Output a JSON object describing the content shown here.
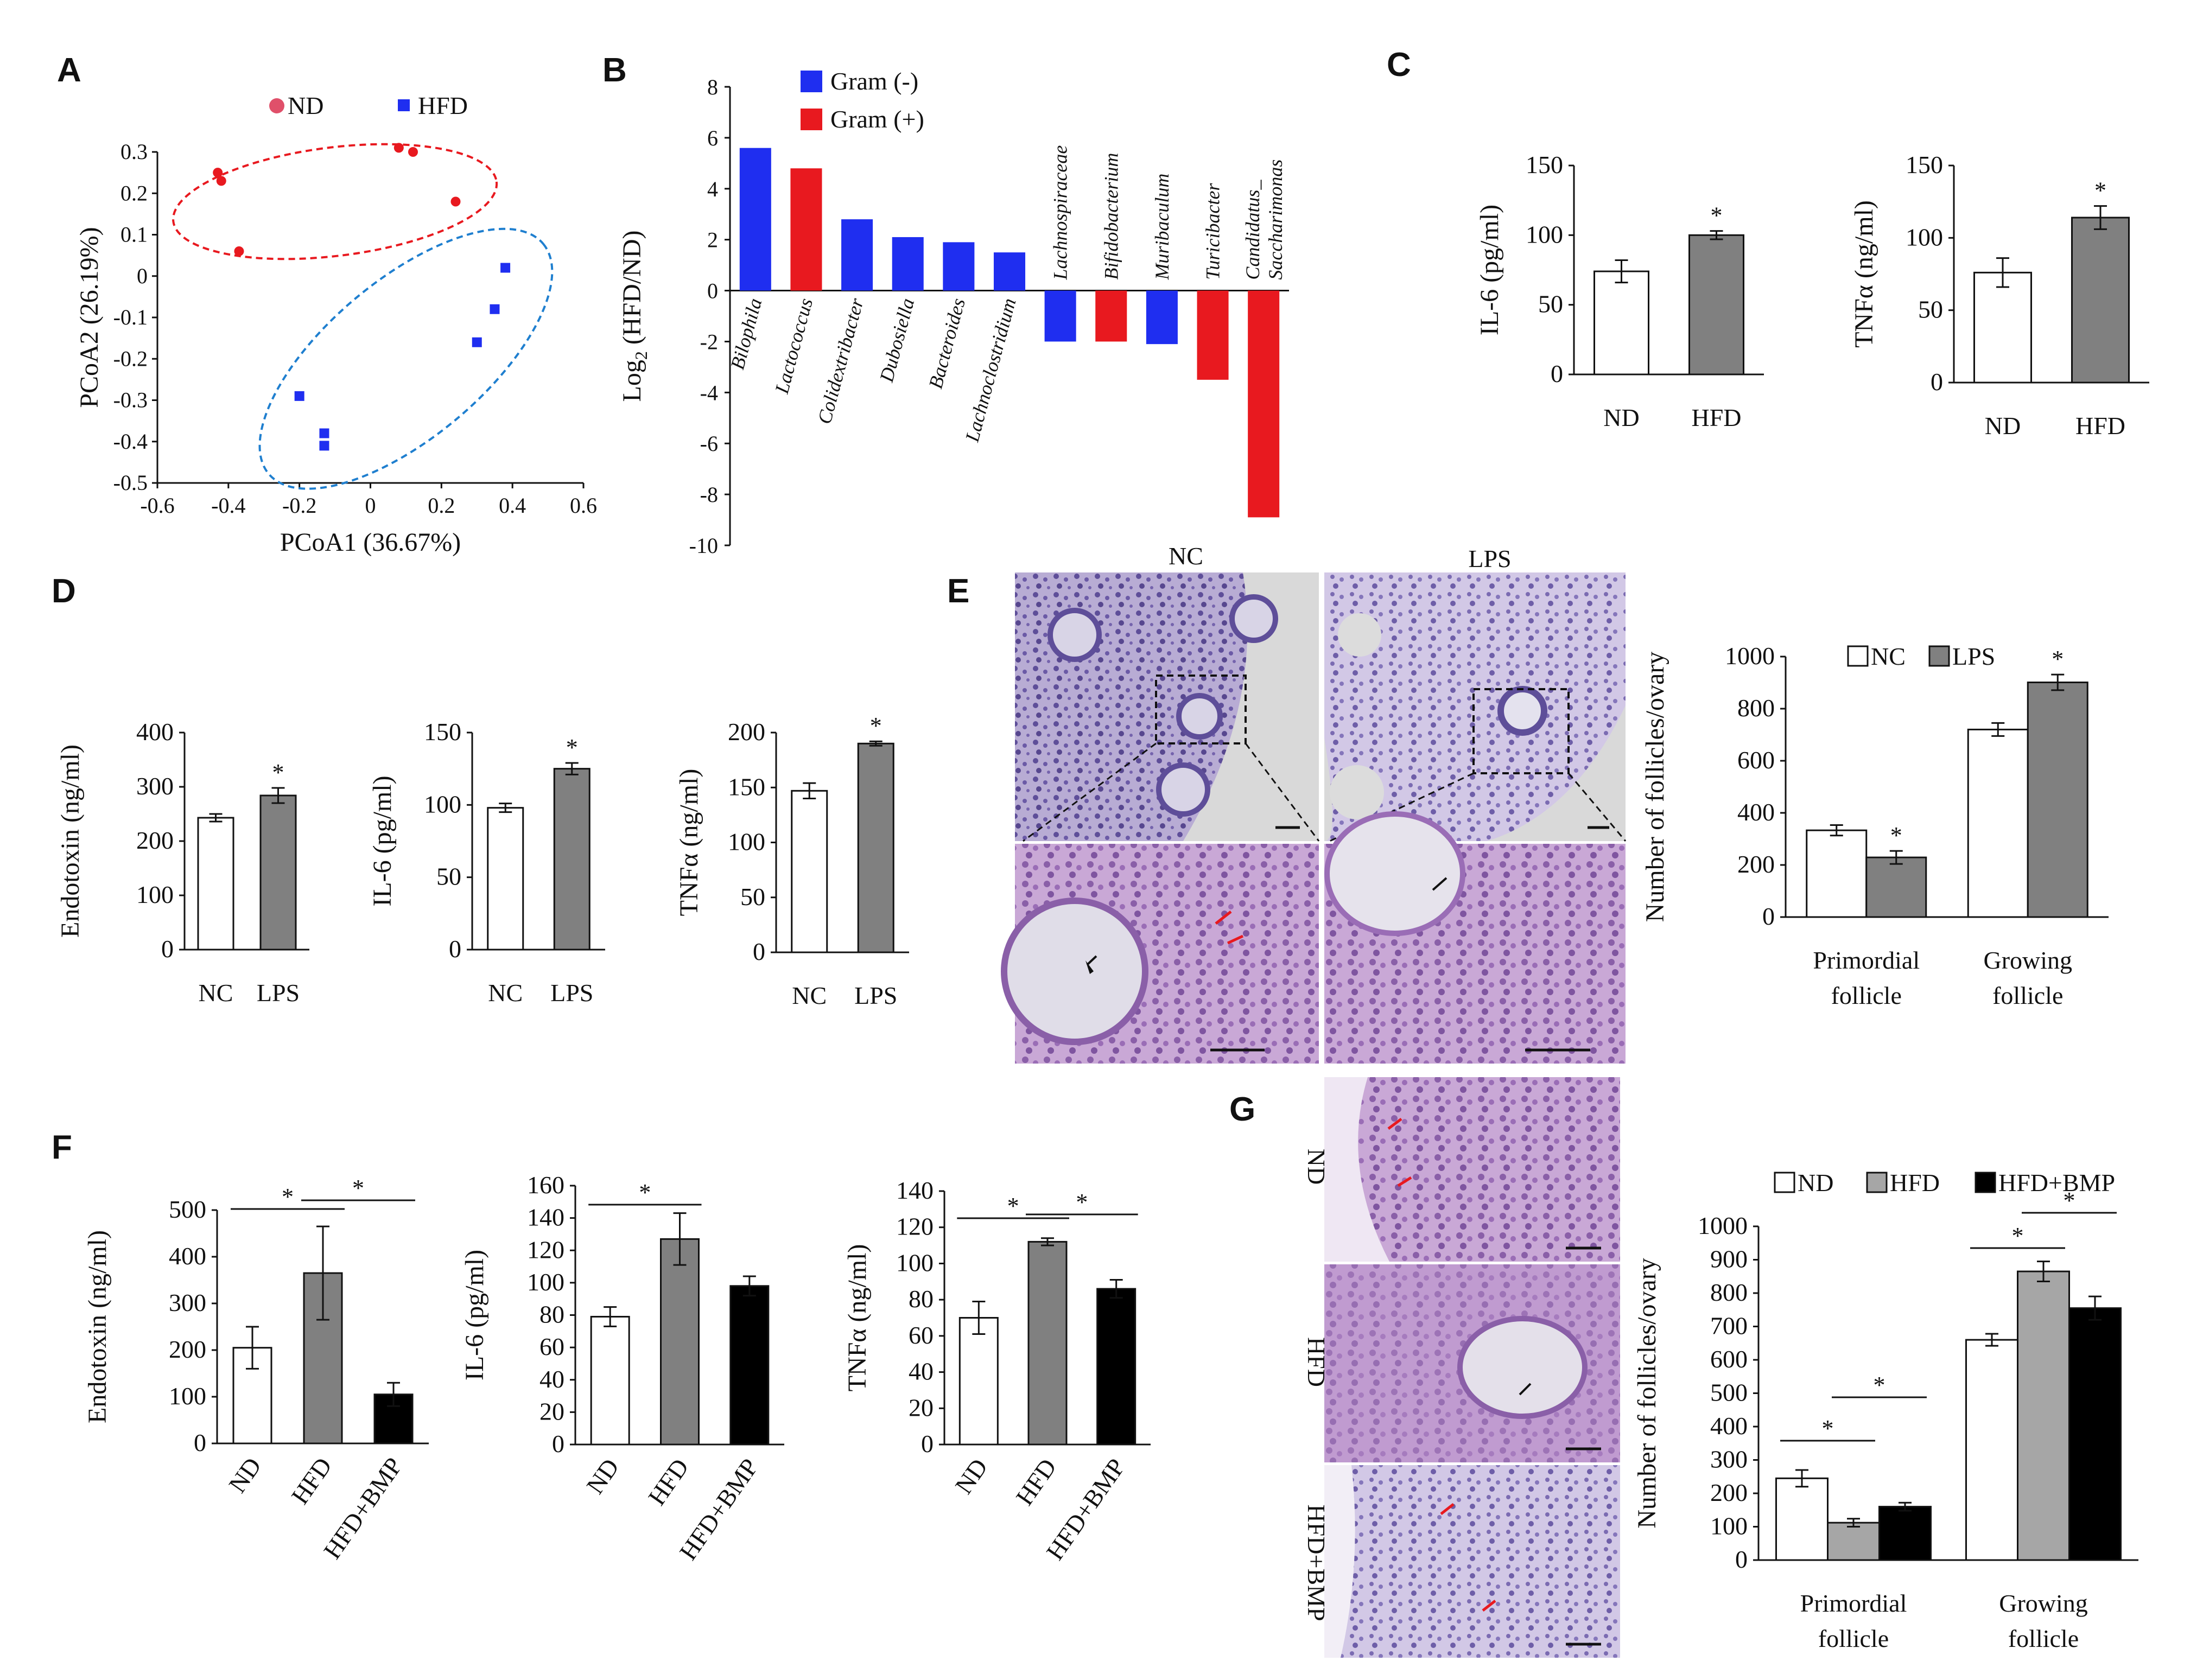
{
  "panels": {
    "A": {
      "letter": "A"
    },
    "B": {
      "letter": "B"
    },
    "C": {
      "letter": "C"
    },
    "D": {
      "letter": "D"
    },
    "E": {
      "letter": "E",
      "img_labels": [
        "NC",
        "LPS"
      ]
    },
    "F": {
      "letter": "F"
    },
    "G": {
      "letter": "G",
      "img_labels": [
        "ND",
        "HFD",
        "HFD+BMP"
      ]
    }
  },
  "colors": {
    "red": "#e8191f",
    "blue": "#1f2ef0",
    "gray": "#808080",
    "lightgray": "#a6a6a6",
    "black": "#000000",
    "white": "#ffffff",
    "ellipse_red": "#e8191f",
    "ellipse_blue": "#1f7fcf",
    "histo_purple": "#8a78b6",
    "histo_pink": "#b98cc4"
  },
  "chart_data": [
    {
      "id": "A",
      "type": "scatter",
      "title": "",
      "xlabel": "PCoA1 (36.67%)",
      "ylabel": "PCoA2 (26.19%)",
      "xlim": [
        -0.6,
        0.6
      ],
      "ylim": [
        -0.5,
        0.3
      ],
      "xticks": [
        "-0.6",
        "-0.4",
        "-0.2",
        "0",
        "0.2",
        "0.4",
        "0.6"
      ],
      "yticks": [
        "0.3",
        "0.2",
        "0.1",
        "0",
        "-0.1",
        "-0.2",
        "-0.3",
        "-0.4",
        "-0.5"
      ],
      "series": [
        {
          "name": "ND",
          "marker": "circle",
          "color": "#e8191f",
          "points": [
            [
              -0.43,
              0.25
            ],
            [
              -0.42,
              0.23
            ],
            [
              -0.37,
              0.06
            ],
            [
              0.08,
              0.31
            ],
            [
              0.12,
              0.3
            ],
            [
              0.24,
              0.18
            ]
          ]
        },
        {
          "name": "HFD",
          "marker": "square",
          "color": "#1f2ef0",
          "points": [
            [
              0.38,
              0.02
            ],
            [
              0.35,
              -0.08
            ],
            [
              0.3,
              -0.16
            ],
            [
              -0.2,
              -0.29
            ],
            [
              -0.13,
              -0.38
            ],
            [
              -0.13,
              -0.41
            ]
          ]
        }
      ]
    },
    {
      "id": "B",
      "type": "bar",
      "title": "",
      "ylabel": "Log2 (HFD/ND)",
      "ylim": [
        -10,
        8
      ],
      "yticks": [
        "8",
        "6",
        "4",
        "2",
        "0",
        "-2",
        "-4",
        "-6",
        "-8",
        "-10"
      ],
      "legend": [
        {
          "label": "Gram (-)",
          "color": "#1f2ef0"
        },
        {
          "label": "Gram (+)",
          "color": "#e8191f"
        }
      ],
      "categories": [
        "Bilophila",
        "Lactococcus",
        "Colidextribacter",
        "Dubosiella",
        "Bacteroides",
        "Lachnoclostridium",
        "Lachnospiraceae",
        "Bifidobacterium",
        "Muribaculum",
        "Turicibacter",
        "Candidatus_ Saccharimonas"
      ],
      "values": [
        5.6,
        4.8,
        2.8,
        2.1,
        1.9,
        1.5,
        -2.0,
        -2.0,
        -2.1,
        -3.5,
        -8.9
      ],
      "gram": [
        "-",
        "+",
        "-",
        "-",
        "-",
        "-",
        "-",
        "+",
        "-",
        "+",
        "+"
      ]
    },
    {
      "id": "C1",
      "type": "bar",
      "ylabel": "IL-6 (pg/ml)",
      "ylim": [
        0,
        150
      ],
      "yticks": [
        "0",
        "50",
        "100",
        "150"
      ],
      "categories": [
        "ND",
        "HFD"
      ],
      "values": [
        74,
        100
      ],
      "errors": [
        8,
        3
      ],
      "stars": [
        "",
        "*"
      ]
    },
    {
      "id": "C2",
      "type": "bar",
      "ylabel": "TNFα (ng/ml)",
      "ylim": [
        0,
        150
      ],
      "yticks": [
        "0",
        "50",
        "100",
        "150"
      ],
      "categories": [
        "ND",
        "HFD"
      ],
      "values": [
        76,
        114
      ],
      "errors": [
        10,
        8
      ],
      "stars": [
        "",
        "*"
      ]
    },
    {
      "id": "D1",
      "type": "bar",
      "ylabel": "Endotoxin (ng/ml)",
      "ylim": [
        0,
        400
      ],
      "yticks": [
        "0",
        "100",
        "200",
        "300",
        "400"
      ],
      "categories": [
        "NC",
        "LPS"
      ],
      "values": [
        243,
        284
      ],
      "errors": [
        7,
        14
      ],
      "stars": [
        "",
        "*"
      ]
    },
    {
      "id": "D2",
      "type": "bar",
      "ylabel": "IL-6 (pg/ml)",
      "ylim": [
        0,
        150
      ],
      "yticks": [
        "0",
        "50",
        "100",
        "150"
      ],
      "categories": [
        "NC",
        "LPS"
      ],
      "values": [
        98,
        125
      ],
      "errors": [
        3,
        4
      ],
      "stars": [
        "",
        "*"
      ]
    },
    {
      "id": "D3",
      "type": "bar",
      "ylabel": "TNFα (ng/ml)",
      "ylim": [
        0,
        200
      ],
      "yticks": [
        "0",
        "50",
        "100",
        "150",
        "200"
      ],
      "categories": [
        "NC",
        "LPS"
      ],
      "values": [
        147,
        190
      ],
      "errors": [
        7,
        2
      ],
      "stars": [
        "",
        "*"
      ]
    },
    {
      "id": "E",
      "type": "bar",
      "ylabel": "Number of follicles/ovary",
      "ylim": [
        0,
        1000
      ],
      "yticks": [
        "0",
        "200",
        "400",
        "600",
        "800",
        "1000"
      ],
      "categories": [
        "Primordial follicle",
        "Growing follicle"
      ],
      "series": [
        {
          "name": "NC",
          "values": [
            333,
            720
          ],
          "errors": [
            20,
            25
          ]
        },
        {
          "name": "LPS",
          "values": [
            229,
            901
          ],
          "errors": [
            25,
            30
          ]
        }
      ],
      "stars": [
        [
          "",
          "*"
        ],
        [
          "",
          "*"
        ]
      ]
    },
    {
      "id": "F1",
      "type": "bar",
      "ylabel": "Endotoxin (ng/ml)",
      "ylim": [
        0,
        500
      ],
      "yticks": [
        "0",
        "100",
        "200",
        "300",
        "400",
        "500"
      ],
      "categories": [
        "ND",
        "HFD",
        "HFD+BMP"
      ],
      "values": [
        205,
        365,
        105
      ],
      "errors": [
        45,
        100,
        25
      ],
      "sig": [
        [
          0,
          1,
          "*"
        ],
        [
          1,
          2,
          "*"
        ]
      ]
    },
    {
      "id": "F2",
      "type": "bar",
      "ylabel": "IL-6 (pg/ml)",
      "ylim": [
        0,
        160
      ],
      "yticks": [
        "0",
        "20",
        "40",
        "60",
        "80",
        "100",
        "120",
        "140",
        "160"
      ],
      "categories": [
        "ND",
        "HFD",
        "HFD+BMP"
      ],
      "values": [
        79,
        127,
        98
      ],
      "errors": [
        6,
        16,
        6
      ],
      "sig": [
        [
          0,
          1,
          "*"
        ]
      ]
    },
    {
      "id": "F3",
      "type": "bar",
      "ylabel": "TNFα (ng/ml)",
      "ylim": [
        0,
        140
      ],
      "yticks": [
        "0",
        "20",
        "40",
        "60",
        "80",
        "100",
        "120",
        "140"
      ],
      "categories": [
        "ND",
        "HFD",
        "HFD+BMP"
      ],
      "values": [
        70,
        112,
        86
      ],
      "errors": [
        9,
        2,
        5
      ],
      "sig": [
        [
          0,
          1,
          "*"
        ],
        [
          1,
          2,
          "*"
        ]
      ]
    },
    {
      "id": "G",
      "type": "bar",
      "ylabel": "Number of follicles/ovary",
      "ylim": [
        0,
        1000
      ],
      "yticks": [
        "0",
        "100",
        "200",
        "300",
        "400",
        "500",
        "600",
        "700",
        "800",
        "900",
        "1000"
      ],
      "categories": [
        "Primordial follicle",
        "Growing follicle"
      ],
      "series": [
        {
          "name": "ND",
          "values": [
            245,
            660
          ],
          "errors": [
            25,
            18
          ]
        },
        {
          "name": "HFD",
          "values": [
            112,
            865
          ],
          "errors": [
            12,
            30
          ]
        },
        {
          "name": "HFD+BMP",
          "values": [
            160,
            755
          ],
          "errors": [
            12,
            35
          ]
        }
      ],
      "sig": [
        [
          0,
          0,
          1,
          "*"
        ],
        [
          0,
          1,
          2,
          "*"
        ],
        [
          1,
          0,
          1,
          "*"
        ],
        [
          1,
          1,
          2,
          "*"
        ]
      ]
    }
  ]
}
